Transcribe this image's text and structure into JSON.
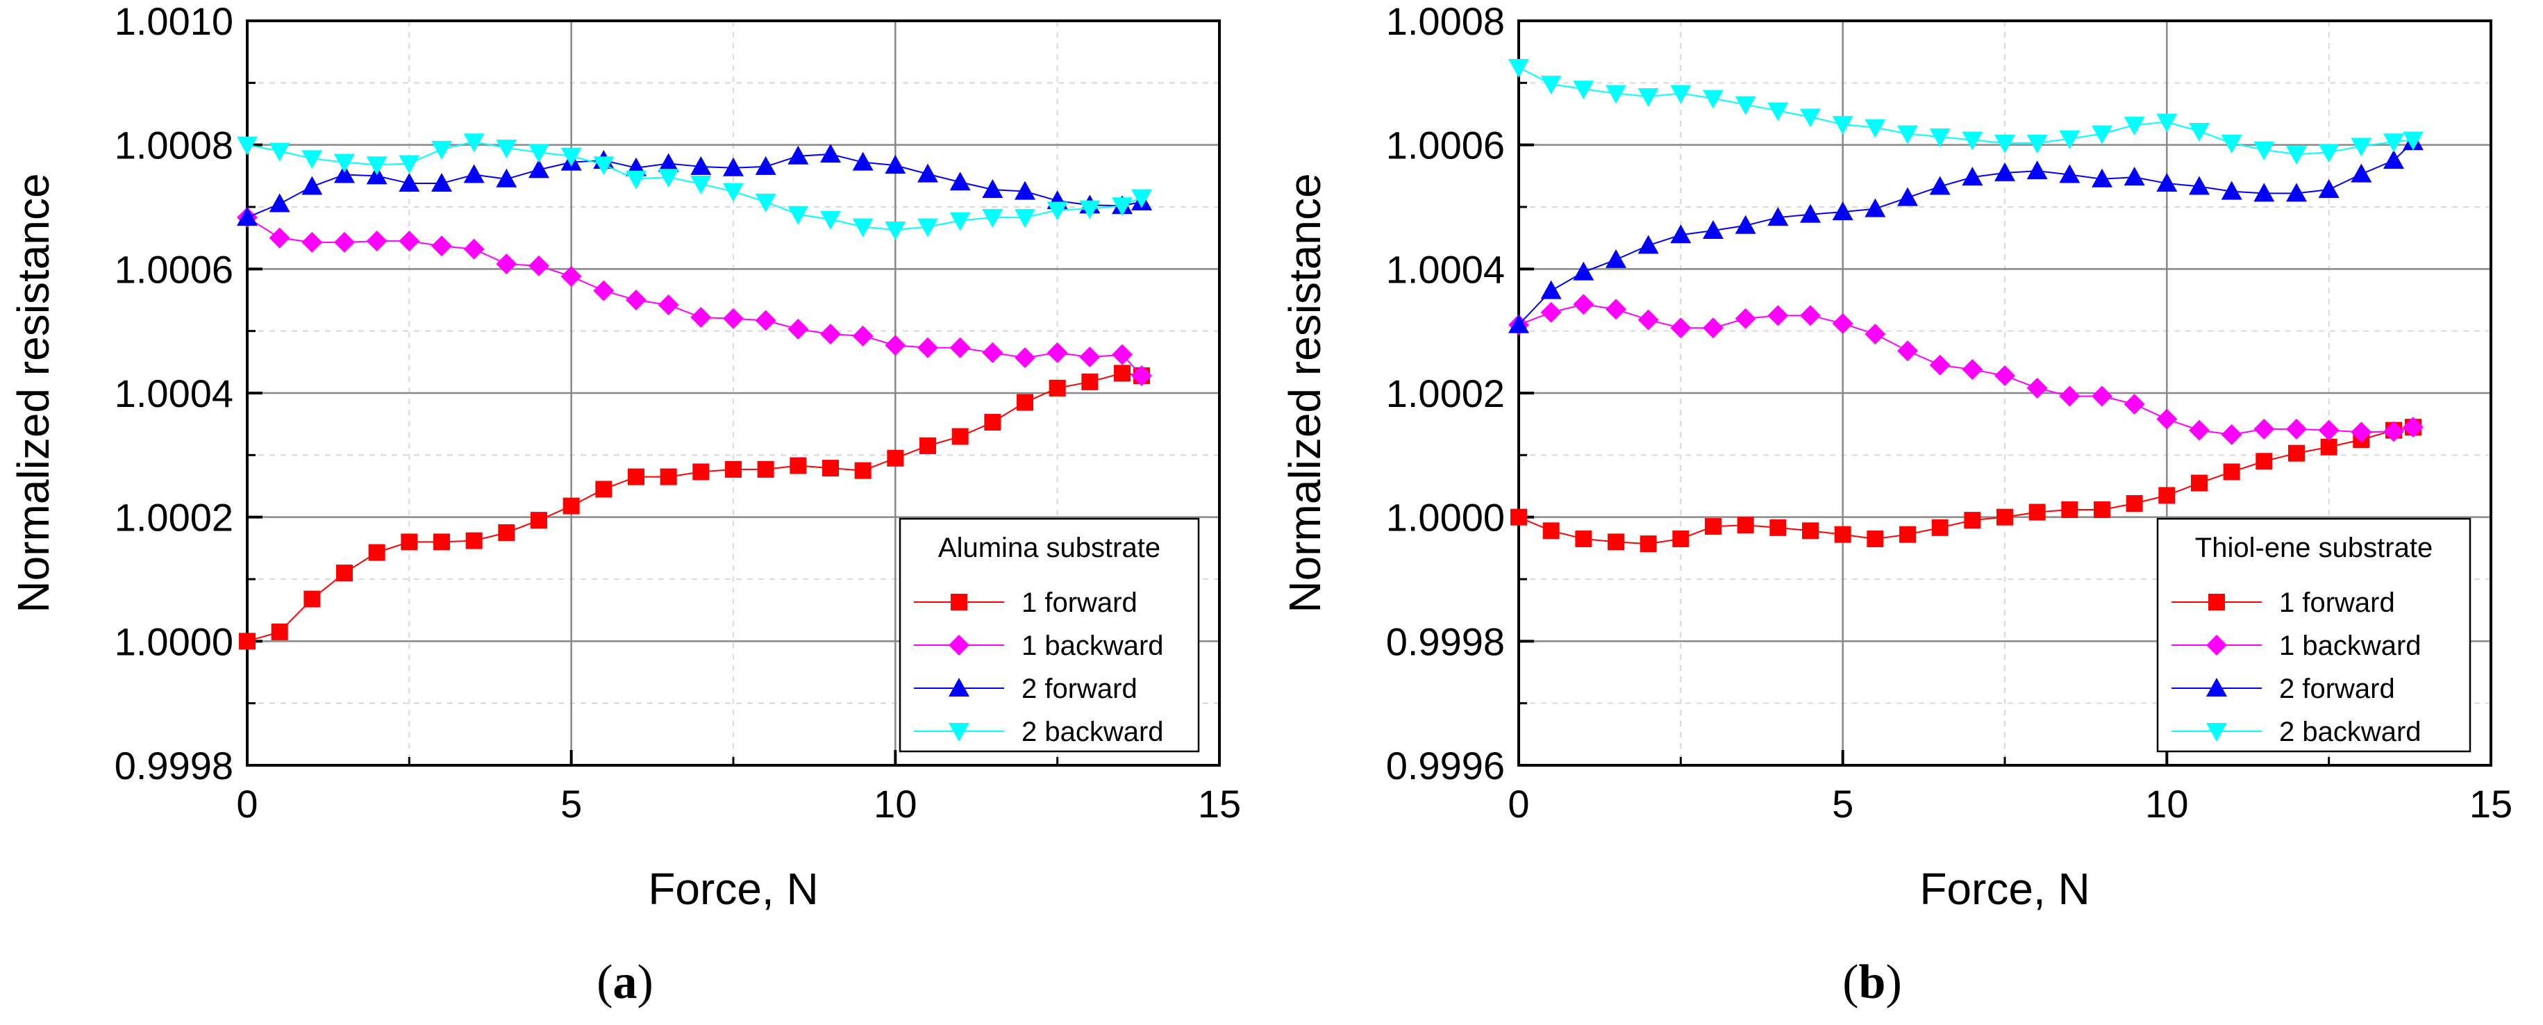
{
  "charts": [
    {
      "caption": {
        "open": "(",
        "letter": "a",
        "close": ")"
      },
      "chart_data": {
        "type": "line",
        "xlabel": "Force, N",
        "ylabel": "Normalized resistance",
        "xlim": [
          0,
          15
        ],
        "ylim": [
          0.9998,
          1.001
        ],
        "xticks": [
          "0",
          "5",
          "10",
          "15"
        ],
        "yticks": [
          "0.9998",
          "1.0000",
          "1.0002",
          "1.0004",
          "1.0006",
          "1.0008",
          "1.0010"
        ],
        "grid": true,
        "legend": {
          "title": "Alumina substrate",
          "position": "bottom-right"
        },
        "series": [
          {
            "name": "1 forward",
            "color": "#ff0000",
            "marker": "square",
            "x": [
              0,
              0.5,
              1,
              1.5,
              2,
              2.5,
              3,
              3.5,
              4,
              4.5,
              5,
              5.5,
              6,
              6.5,
              7,
              7.5,
              8,
              8.5,
              9,
              9.5,
              10,
              10.5,
              11,
              11.5,
              12,
              12.5,
              13,
              13.5,
              13.8
            ],
            "y": [
              1.0,
              1.000015,
              1.000068,
              1.00011,
              1.000143,
              1.00016,
              1.00016,
              1.000162,
              1.000175,
              1.000195,
              1.000218,
              1.000245,
              1.000265,
              1.000265,
              1.000273,
              1.000277,
              1.000277,
              1.000283,
              1.000279,
              1.000275,
              1.000295,
              1.000315,
              1.00033,
              1.000353,
              1.000385,
              1.000408,
              1.000418,
              1.000432,
              1.000428
            ]
          },
          {
            "name": "1 backward",
            "color": "#ff00ff",
            "marker": "diamond",
            "x": [
              0,
              0.5,
              1,
              1.5,
              2,
              2.5,
              3,
              3.5,
              4,
              4.5,
              5,
              5.5,
              6,
              6.5,
              7,
              7.5,
              8,
              8.5,
              9,
              9.5,
              10,
              10.5,
              11,
              11.5,
              12,
              12.5,
              13,
              13.5,
              13.8
            ],
            "y": [
              1.000683,
              1.00065,
              1.000643,
              1.000643,
              1.000645,
              1.000645,
              1.000637,
              1.000632,
              1.000608,
              1.000605,
              1.000588,
              1.000565,
              1.00055,
              1.000542,
              1.000522,
              1.00052,
              1.000517,
              1.000503,
              1.000495,
              1.000492,
              1.000477,
              1.000473,
              1.000473,
              1.000465,
              1.000457,
              1.000465,
              1.000458,
              1.000462,
              1.000428
            ]
          },
          {
            "name": "2 forward",
            "color": "#0000ff",
            "marker": "triangle-up",
            "x": [
              0,
              0.5,
              1,
              1.5,
              2,
              2.5,
              3,
              3.5,
              4,
              4.5,
              5,
              5.5,
              6,
              6.5,
              7,
              7.5,
              8,
              8.5,
              9,
              9.5,
              10,
              10.5,
              11,
              11.5,
              12,
              12.5,
              13,
              13.5,
              13.8
            ],
            "y": [
              1.000683,
              1.000705,
              1.000733,
              1.000752,
              1.00075,
              1.000738,
              1.000738,
              1.000752,
              1.000745,
              1.00076,
              1.000772,
              1.000775,
              1.000763,
              1.00077,
              1.000765,
              1.000763,
              1.000765,
              1.000782,
              1.000785,
              1.000772,
              1.000767,
              1.000753,
              1.00074,
              1.000728,
              1.000725,
              1.00071,
              1.000703,
              1.000702,
              1.000708
            ]
          },
          {
            "name": "2 backward",
            "color": "#00ffff",
            "marker": "triangle-down",
            "x": [
              0,
              0.5,
              1,
              1.5,
              2,
              2.5,
              3,
              3.5,
              4,
              4.5,
              5,
              5.5,
              6,
              6.5,
              7,
              7.5,
              8,
              8.5,
              9,
              9.5,
              10,
              10.5,
              11,
              11.5,
              12,
              12.5,
              13,
              13.5,
              13.8
            ],
            "y": [
              1.0008,
              1.00079,
              1.000778,
              1.000772,
              1.000768,
              1.00077,
              1.000793,
              1.000805,
              1.000795,
              1.000788,
              1.000782,
              1.000768,
              1.000745,
              1.000748,
              1.000737,
              1.000725,
              1.000708,
              1.000688,
              1.00068,
              1.000668,
              1.000663,
              1.000668,
              1.000678,
              1.000683,
              1.000683,
              1.000695,
              1.000697,
              1.000702,
              1.000715
            ]
          }
        ]
      }
    },
    {
      "caption": {
        "open": "(",
        "letter": "b",
        "close": ")"
      },
      "chart_data": {
        "type": "line",
        "xlabel": "Force, N",
        "ylabel": "Normalized resistance",
        "xlim": [
          0,
          15
        ],
        "ylim": [
          0.9996,
          1.0008
        ],
        "xticks": [
          "0",
          "5",
          "10",
          "15"
        ],
        "yticks": [
          "0.9996",
          "0.9998",
          "1.0000",
          "1.0002",
          "1.0004",
          "1.0006",
          "1.0008"
        ],
        "grid": true,
        "legend": {
          "title": "Thiol-ene substrate",
          "position": "bottom-right"
        },
        "series": [
          {
            "name": "1 forward",
            "color": "#ff0000",
            "marker": "square",
            "x": [
              0,
              0.5,
              1,
              1.5,
              2,
              2.5,
              3,
              3.5,
              4,
              4.5,
              5,
              5.5,
              6,
              6.5,
              7,
              7.5,
              8,
              8.5,
              9,
              9.5,
              10,
              10.5,
              11,
              11.5,
              12,
              12.5,
              13,
              13.5,
              13.8
            ],
            "y": [
              1.0,
              0.999978,
              0.999965,
              0.99996,
              0.999957,
              0.999965,
              0.999985,
              0.999987,
              0.999983,
              0.999978,
              0.999972,
              0.999965,
              0.999972,
              0.999983,
              0.999995,
              1.0,
              1.000008,
              1.000012,
              1.000012,
              1.000022,
              1.000035,
              1.000055,
              1.000073,
              1.00009,
              1.000103,
              1.000113,
              1.000125,
              1.00014,
              1.000145
            ]
          },
          {
            "name": "1 backward",
            "color": "#ff00ff",
            "marker": "diamond",
            "x": [
              0,
              0.5,
              1,
              1.5,
              2,
              2.5,
              3,
              3.5,
              4,
              4.5,
              5,
              5.5,
              6,
              6.5,
              7,
              7.5,
              8,
              8.5,
              9,
              9.5,
              10,
              10.5,
              11,
              11.5,
              12,
              12.5,
              13,
              13.5,
              13.8
            ],
            "y": [
              1.00031,
              1.00033,
              1.000343,
              1.000335,
              1.000318,
              1.000305,
              1.000305,
              1.00032,
              1.000325,
              1.000325,
              1.000312,
              1.000295,
              1.000268,
              1.000245,
              1.000238,
              1.000228,
              1.000208,
              1.000195,
              1.000195,
              1.000182,
              1.000158,
              1.00014,
              1.000133,
              1.000142,
              1.000142,
              1.00014,
              1.000137,
              1.000138,
              1.000145
            ]
          },
          {
            "name": "2 forward",
            "color": "#0000ff",
            "marker": "triangle-up",
            "x": [
              0,
              0.5,
              1,
              1.5,
              2,
              2.5,
              3,
              3.5,
              4,
              4.5,
              5,
              5.5,
              6,
              6.5,
              7,
              7.5,
              8,
              8.5,
              9,
              9.5,
              10,
              10.5,
              11,
              11.5,
              12,
              12.5,
              13,
              13.5,
              13.8
            ],
            "y": [
              1.00031,
              1.000365,
              1.000395,
              1.000415,
              1.000438,
              1.000455,
              1.000462,
              1.00047,
              1.000483,
              1.000488,
              1.000492,
              1.000497,
              1.000515,
              1.000533,
              1.000548,
              1.000555,
              1.000558,
              1.000552,
              1.000545,
              1.000548,
              1.000538,
              1.000533,
              1.000525,
              1.000522,
              1.000522,
              1.000528,
              1.000553,
              1.000575,
              1.000605
            ]
          },
          {
            "name": "2 backward",
            "color": "#00ffff",
            "marker": "triangle-down",
            "x": [
              0,
              0.5,
              1,
              1.5,
              2,
              2.5,
              3,
              3.5,
              4,
              4.5,
              5,
              5.5,
              6,
              6.5,
              7,
              7.5,
              8,
              8.5,
              9,
              9.5,
              10,
              10.5,
              11,
              11.5,
              12,
              12.5,
              13,
              13.5,
              13.8
            ],
            "y": [
              1.000725,
              1.000698,
              1.00069,
              1.000683,
              1.000678,
              1.000683,
              1.000675,
              1.000665,
              1.000655,
              1.000645,
              1.000633,
              1.000628,
              1.000618,
              1.000613,
              1.000608,
              1.000603,
              1.000603,
              1.00061,
              1.000618,
              1.000632,
              1.000637,
              1.000622,
              1.000603,
              1.000592,
              1.000585,
              1.000588,
              1.000598,
              1.000605,
              1.000608
            ]
          }
        ]
      }
    }
  ]
}
